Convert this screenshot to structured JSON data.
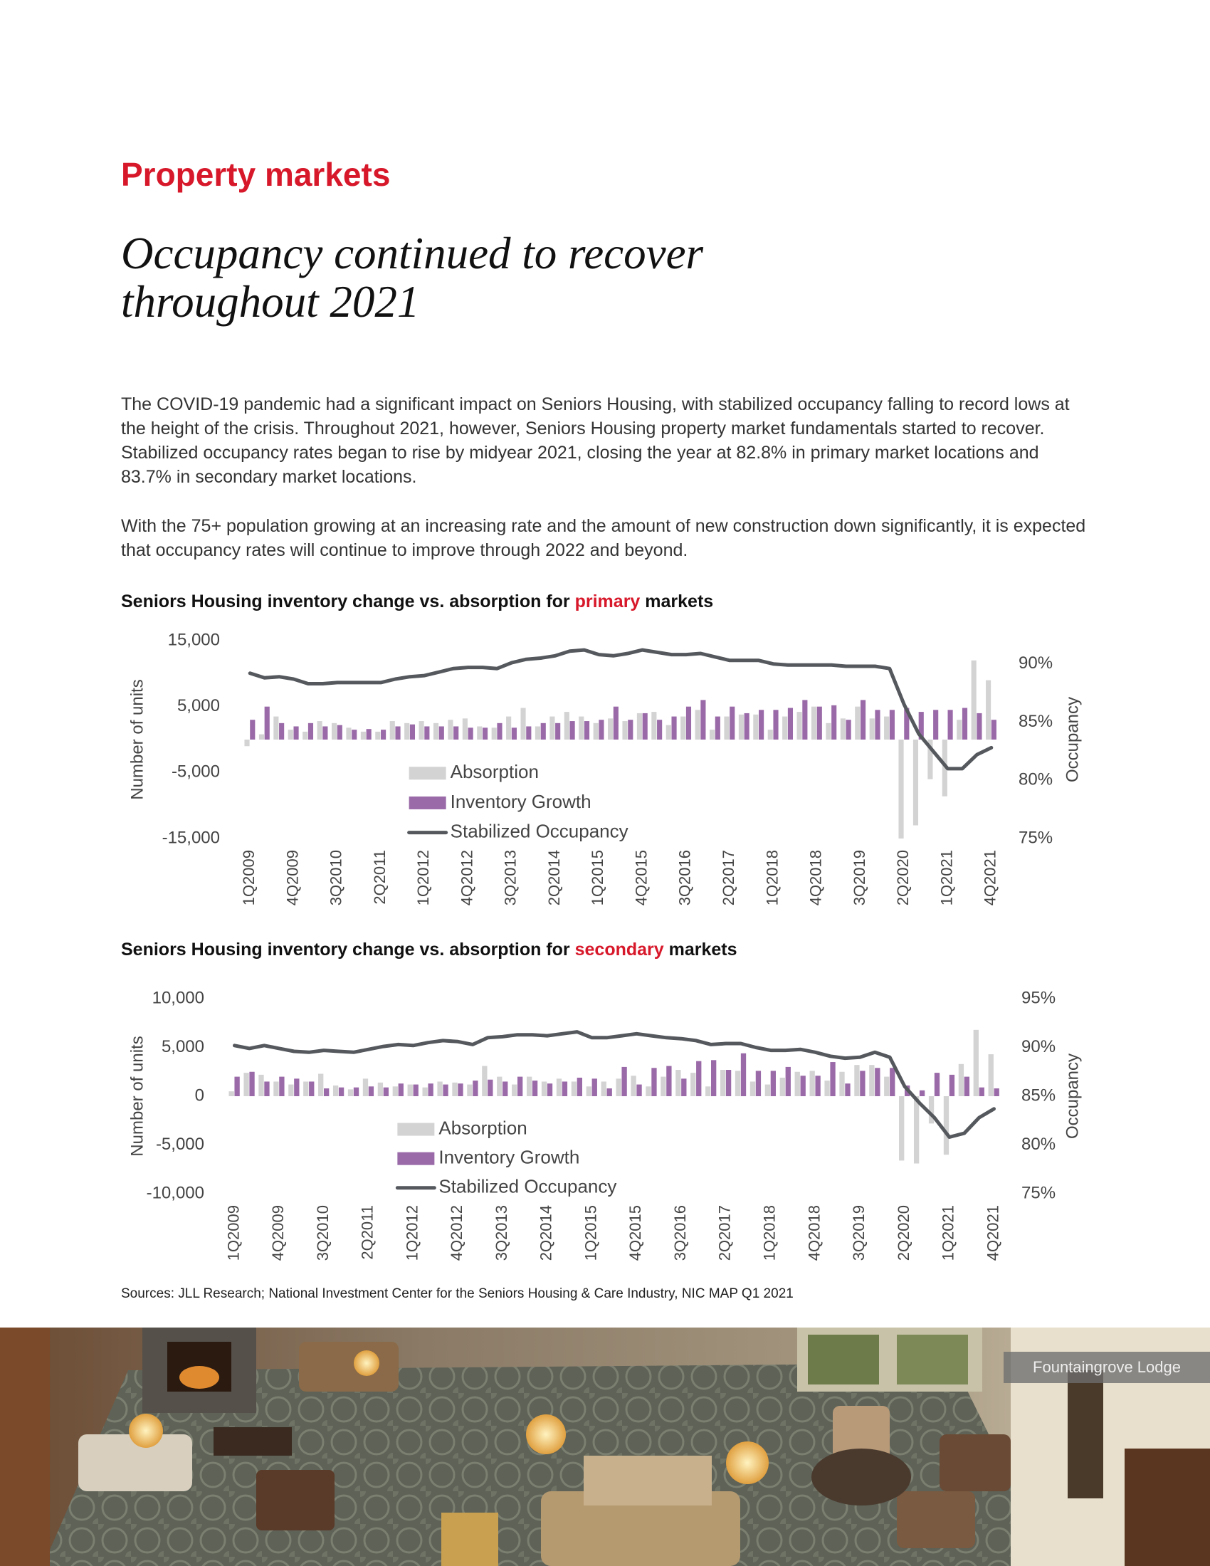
{
  "page": {
    "section": "Property markets",
    "headline": [
      "Occupancy continued to recover",
      "throughout 2021"
    ],
    "paragraphs": [
      "The COVID-19 pandemic had a significant impact on Seniors Housing, with stabilized occupancy falling to record lows at the height of the crisis. Throughout 2021, however, Seniors Housing property market fundamentals started to recover. Stabilized occupancy rates began to rise by midyear 2021, closing the year at 82.8% in primary market locations and 83.7% in secondary market locations.",
      "With the 75+ population growing at an increasing rate and the amount of new construction down significantly, it is expected that occupancy rates will continue to improve through 2022 and beyond."
    ],
    "sources": "Sources: JLL Research; National Investment Center for the Seniors Housing & Care Industry, NIC MAP Q1 2021",
    "photo_caption": "Fountaingrove Lodge"
  },
  "chart_data": [
    {
      "type": "combo",
      "title": [
        {
          "text": "Seniors Housing inventory change vs. absorption for "
        },
        {
          "text": "primary",
          "color": "#d7182a"
        },
        {
          "text": " markets"
        }
      ],
      "y_label": "Number of units",
      "y2_label": "Occupancy",
      "categories": [
        "1Q2009",
        null,
        null,
        "4Q2009",
        null,
        null,
        "3Q2010",
        null,
        null,
        "2Q2011",
        null,
        null,
        "1Q2012",
        null,
        null,
        "4Q2012",
        null,
        null,
        "3Q2013",
        null,
        null,
        "2Q2014",
        null,
        null,
        "1Q2015",
        null,
        null,
        "4Q2015",
        null,
        null,
        "3Q2016",
        null,
        null,
        "2Q2017",
        null,
        null,
        "1Q2018",
        null,
        null,
        "4Q2018",
        null,
        null,
        "3Q2019",
        null,
        null,
        "2Q2020",
        null,
        null,
        "1Q2021",
        null,
        null,
        "4Q2021"
      ],
      "series": [
        {
          "name": "Absorption",
          "type": "bar",
          "color": "#d3d3d3",
          "values": [
            -1000,
            800,
            3500,
            1500,
            1200,
            2800,
            2500,
            1800,
            1200,
            1200,
            2800,
            2500,
            2800,
            2500,
            3000,
            3200,
            2000,
            1800,
            3500,
            4800,
            2000,
            3500,
            4200,
            3500,
            2500,
            3200,
            2800,
            4000,
            4200,
            2200,
            3500,
            4500,
            1500,
            3500,
            3800,
            3800,
            1500,
            3500,
            4200,
            5000,
            2500,
            3200,
            5000,
            3200,
            3500,
            -15000,
            -13000,
            -6000,
            -8600,
            3000,
            12000,
            9000
          ]
        },
        {
          "name": "Inventory Growth",
          "type": "bar",
          "color": "#9a6aa8",
          "values": [
            3000,
            5000,
            2500,
            2000,
            2500,
            2000,
            2200,
            1500,
            1600,
            1500,
            2000,
            2300,
            2000,
            2000,
            2000,
            1800,
            1800,
            2500,
            1800,
            2000,
            2500,
            2500,
            2800,
            2800,
            3000,
            5000,
            3000,
            4000,
            3000,
            3500,
            5000,
            6000,
            3500,
            5000,
            4000,
            4500,
            4500,
            4800,
            6000,
            5000,
            5200,
            3000,
            6000,
            4500,
            4500,
            4800,
            4200,
            4500,
            4500,
            4800,
            4000,
            3000
          ]
        },
        {
          "name": "Stabilized Occupancy",
          "type": "line",
          "axis": "y2",
          "color": "#55595e",
          "values": [
            89.2,
            88.8,
            88.9,
            88.7,
            88.3,
            88.3,
            88.4,
            88.4,
            88.4,
            88.4,
            88.7,
            88.9,
            89.0,
            89.3,
            89.6,
            89.7,
            89.7,
            89.6,
            90.1,
            90.4,
            90.5,
            90.7,
            91.1,
            91.2,
            90.8,
            90.7,
            90.9,
            91.2,
            91.0,
            90.8,
            90.8,
            90.9,
            90.6,
            90.3,
            90.3,
            90.3,
            90.0,
            89.9,
            89.9,
            89.9,
            89.9,
            89.8,
            89.8,
            89.8,
            89.6,
            86.5,
            84.0,
            82.5,
            81.0,
            81.0,
            82.2,
            82.8
          ]
        }
      ],
      "ylim": [
        -15000,
        15000
      ],
      "yticks": [
        {
          "value": 15000,
          "label": "15,000"
        },
        {
          "value": 5000,
          "label": "5,000"
        },
        {
          "value": -5000,
          "label": "-5,000"
        },
        {
          "value": -15000,
          "label": "-15,000"
        }
      ],
      "y2lim": [
        75,
        92
      ],
      "y2ticks": [
        {
          "value": 90,
          "label": "90%"
        },
        {
          "value": 85,
          "label": "85%"
        },
        {
          "value": 80,
          "label": "80%"
        },
        {
          "value": 75,
          "label": "75%"
        }
      ],
      "grid": false,
      "legend": "lower-left"
    },
    {
      "type": "combo",
      "title": [
        {
          "text": "Seniors Housing inventory change vs. absorption for "
        },
        {
          "text": "secondary",
          "color": "#d7182a"
        },
        {
          "text": " markets"
        }
      ],
      "y_label": "Number of units",
      "y2_label": "Occupancy",
      "categories": [
        "1Q2009",
        null,
        null,
        "4Q2009",
        null,
        null,
        "3Q2010",
        null,
        null,
        "2Q2011",
        null,
        null,
        "1Q2012",
        null,
        null,
        "4Q2012",
        null,
        null,
        "3Q2013",
        null,
        null,
        "2Q2014",
        null,
        null,
        "1Q2015",
        null,
        null,
        "4Q2015",
        null,
        null,
        "3Q2016",
        null,
        null,
        "2Q2017",
        null,
        null,
        "1Q2018",
        null,
        null,
        "4Q2018",
        null,
        null,
        "3Q2019",
        null,
        null,
        "2Q2020",
        null,
        null,
        "1Q2021",
        null,
        null,
        "4Q2021"
      ],
      "series": [
        {
          "name": "Absorption",
          "type": "bar",
          "color": "#d3d3d3",
          "values": [
            500,
            2400,
            2200,
            1500,
            1200,
            1500,
            2300,
            1100,
            700,
            1800,
            1400,
            1000,
            1200,
            900,
            1500,
            1400,
            1200,
            3100,
            2000,
            1200,
            2000,
            1500,
            1800,
            1500,
            1000,
            1500,
            1800,
            2100,
            1000,
            2000,
            2700,
            2400,
            1000,
            2700,
            2600,
            1500,
            1200,
            1900,
            2500,
            2600,
            1600,
            2500,
            3200,
            3200,
            2000,
            -6600,
            -6900,
            -2800,
            -6000,
            3300,
            6800,
            4300
          ]
        },
        {
          "name": "Inventory Growth",
          "type": "bar",
          "color": "#9a6aa8",
          "values": [
            2000,
            2500,
            1500,
            2000,
            1800,
            1500,
            800,
            900,
            900,
            1000,
            900,
            1300,
            1200,
            1300,
            1200,
            1300,
            1600,
            1700,
            1500,
            2000,
            1600,
            1300,
            1500,
            1900,
            1800,
            800,
            3000,
            1200,
            2900,
            3100,
            1800,
            3600,
            3700,
            2700,
            4400,
            2600,
            2600,
            3000,
            2100,
            2100,
            3500,
            1300,
            2600,
            2900,
            2900,
            1100,
            600,
            2400,
            2200,
            2000,
            900,
            800
          ]
        },
        {
          "name": "Stabilized Occupancy",
          "type": "line",
          "axis": "y2",
          "color": "#55595e",
          "values": [
            90.2,
            89.9,
            90.2,
            89.9,
            89.6,
            89.5,
            89.7,
            89.6,
            89.5,
            89.8,
            90.1,
            90.3,
            90.2,
            90.5,
            90.7,
            90.6,
            90.3,
            91.0,
            91.1,
            91.3,
            91.3,
            91.2,
            91.4,
            91.6,
            91.0,
            91.0,
            91.2,
            91.4,
            91.2,
            91.0,
            90.9,
            90.7,
            90.3,
            90.4,
            90.4,
            90.0,
            89.7,
            89.7,
            89.8,
            89.5,
            89.1,
            88.9,
            89.0,
            89.5,
            89.0,
            86.0,
            84.3,
            82.8,
            80.8,
            81.2,
            82.8,
            83.7
          ]
        }
      ],
      "ylim": [
        -10000,
        10000
      ],
      "yticks": [
        {
          "value": 10000,
          "label": "10,000"
        },
        {
          "value": 5000,
          "label": "5,000"
        },
        0,
        {
          "value": -5000,
          "label": "-5,000"
        },
        {
          "value": -10000,
          "label": "-10,000"
        }
      ],
      "y2lim": [
        75,
        95
      ],
      "y2ticks": [
        {
          "value": 95,
          "label": "95%"
        },
        {
          "value": 90,
          "label": "90%"
        },
        {
          "value": 85,
          "label": "85%"
        },
        {
          "value": 80,
          "label": "80%"
        },
        {
          "value": 75,
          "label": "75%"
        }
      ],
      "grid": false,
      "legend": "lower-left"
    }
  ]
}
